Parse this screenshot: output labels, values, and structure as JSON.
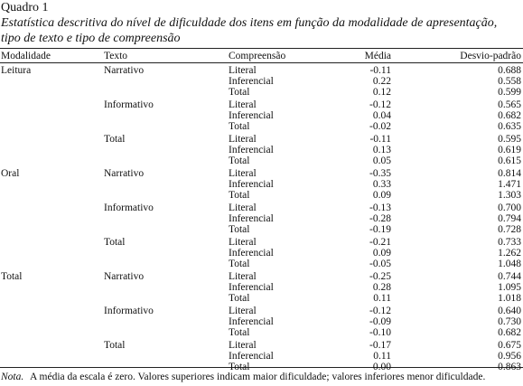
{
  "label": "Quadro 1",
  "caption_lines": [
    "Estatística descritiva do nível de dificuldade dos itens em função da modalidade de apresentação,",
    "tipo de texto e tipo de compreensão"
  ],
  "table": {
    "headers": [
      "Modalidade",
      "Texto",
      "Compreensão",
      "Média",
      "Desvio-padrão"
    ],
    "groups": [
      {
        "label": "Leitura",
        "texts": [
          {
            "label": "Narrativo",
            "rows": [
              [
                "Literal",
                "-0.11",
                "0.688"
              ],
              [
                "Inferencial",
                "0.22",
                "0.558"
              ],
              [
                "Total",
                "0.12",
                "0.599"
              ]
            ]
          },
          {
            "label": "Informativo",
            "rows": [
              [
                "Literal",
                "-0.12",
                "0.565"
              ],
              [
                "Inferencial",
                "0.04",
                "0.682"
              ],
              [
                "Total",
                "-0.02",
                "0.635"
              ]
            ]
          },
          {
            "label": "Total",
            "rows": [
              [
                "Literal",
                "-0.11",
                "0.595"
              ],
              [
                "Inferencial",
                "0.13",
                "0.619"
              ],
              [
                "Total",
                "0.05",
                "0.615"
              ]
            ]
          }
        ]
      },
      {
        "label": "Oral",
        "texts": [
          {
            "label": "Narrativo",
            "rows": [
              [
                "Literal",
                "-0.35",
                "0.814"
              ],
              [
                "Inferencial",
                "0.33",
                "1.471"
              ],
              [
                "Total",
                "0.09",
                "1.303"
              ]
            ]
          },
          {
            "label": "Informativo",
            "rows": [
              [
                "Literal",
                "-0.13",
                "0.700"
              ],
              [
                "Inferencial",
                "-0.28",
                "0.794"
              ],
              [
                "Total",
                "-0.19",
                "0.728"
              ]
            ]
          },
          {
            "label": "Total",
            "rows": [
              [
                "Literal",
                "-0.21",
                "0.733"
              ],
              [
                "Inferencial",
                "0.09",
                "1.262"
              ],
              [
                "Total",
                "-0.05",
                "1.048"
              ]
            ]
          }
        ]
      },
      {
        "label": "Total",
        "texts": [
          {
            "label": "Narrativo",
            "rows": [
              [
                "Literal",
                "-0.25",
                "0.744"
              ],
              [
                "Inferencial",
                "0.28",
                "1.095"
              ],
              [
                "Total",
                "0.11",
                "1.018"
              ]
            ]
          },
          {
            "label": "Informativo",
            "rows": [
              [
                "Literal",
                "-0.12",
                "0.640"
              ],
              [
                "Inferencial",
                "-0.09",
                "0.730"
              ],
              [
                "Total",
                "-0.10",
                "0.682"
              ]
            ]
          },
          {
            "label": "Total",
            "rows": [
              [
                "Literal",
                "-0.17",
                "0.675"
              ],
              [
                "Inferencial",
                "0.11",
                "0.956"
              ],
              [
                "Total",
                "0.00",
                "0.863"
              ]
            ]
          }
        ]
      }
    ]
  },
  "note": {
    "label": "Nota.",
    "text": "A média da escala é zero. Valores superiores indicam maior dificuldade; valores inferiores menor dificuldade."
  }
}
